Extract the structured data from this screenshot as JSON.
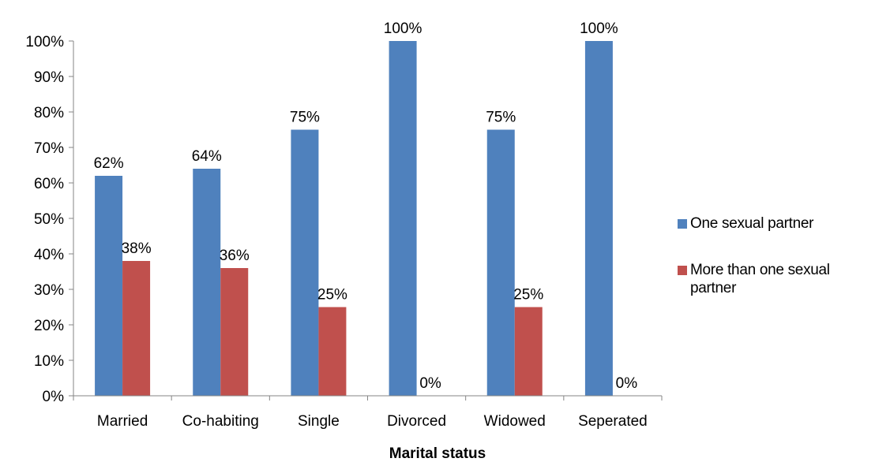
{
  "chart_data": {
    "type": "bar",
    "categories": [
      "Married",
      "Co-habiting",
      "Single",
      "Divorced",
      "Widowed",
      "Seperated"
    ],
    "series": [
      {
        "name": "One sexual partner",
        "color": "#4F81BD",
        "values": [
          62,
          64,
          75,
          100,
          75,
          100
        ],
        "labels": [
          "62%",
          "64%",
          "75%",
          "100%",
          "75%",
          "100%"
        ]
      },
      {
        "name": "More than one sexual partner",
        "color": "#C0504D",
        "values": [
          38,
          36,
          25,
          0,
          25,
          0
        ],
        "labels": [
          "38%",
          "36%",
          "25%",
          "0%",
          "25%",
          "0%"
        ]
      }
    ],
    "xlabel": "Marital status",
    "ylabel": "",
    "ylim": [
      0,
      100
    ],
    "yticks": [
      "0%",
      "10%",
      "20%",
      "30%",
      "40%",
      "50%",
      "60%",
      "70%",
      "80%",
      "90%",
      "100%"
    ],
    "grid": false,
    "legend_position": "right"
  }
}
